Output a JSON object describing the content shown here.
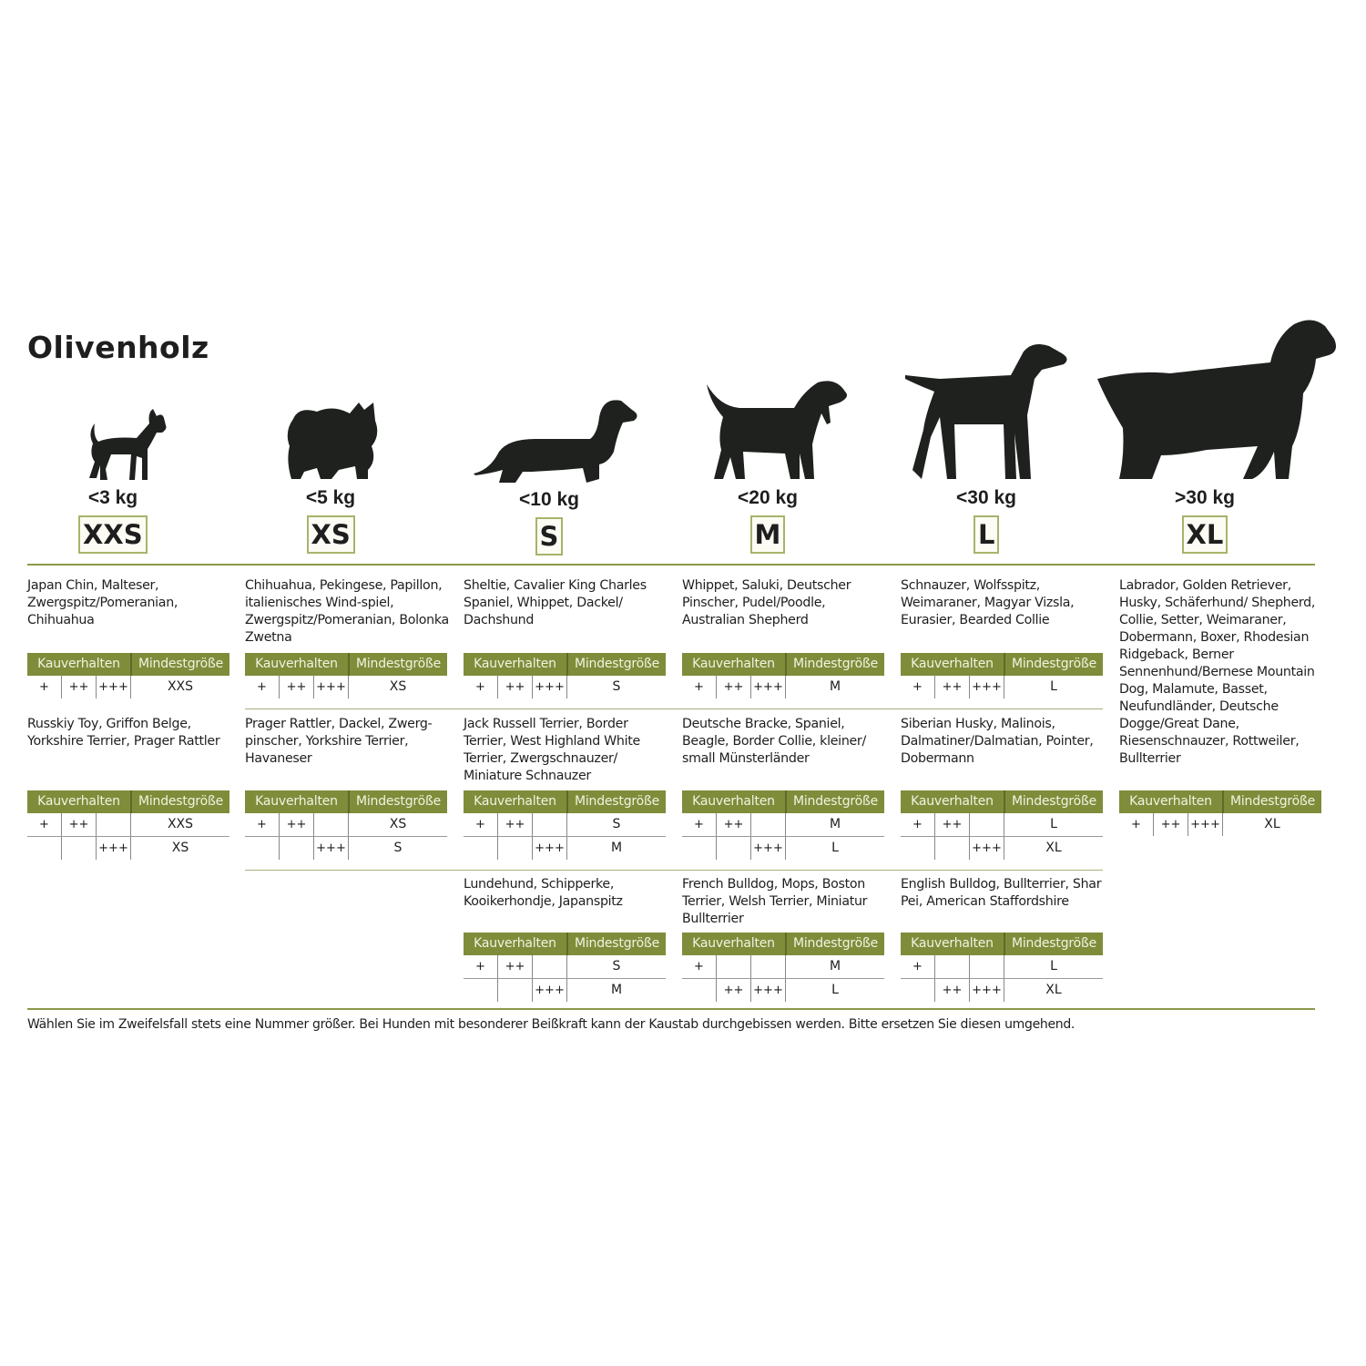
{
  "title": "Olivenholz",
  "accent_color": "#7f8c3a",
  "table_headers": {
    "chewing": "Kauverhalten",
    "min_size": "Mindestgröße"
  },
  "columns": [
    {
      "weight": "<3 kg",
      "size": "XXS",
      "icon": "chihuahua-silhouette-icon",
      "blocks": [
        {
          "text": "Japan Chin, Malteser, Zwergspitz/Pomeranian, Chihuahua",
          "rows": [
            [
              "+",
              "++",
              "+++",
              "XXS"
            ]
          ]
        },
        {
          "text": "Russkiy Toy, Griffon Belge, Yorkshire Terrier, Prager Rattler",
          "rows": [
            [
              "+",
              "++",
              "",
              "XXS"
            ],
            [
              "",
              "",
              "+++",
              "XS"
            ]
          ]
        }
      ]
    },
    {
      "weight": "<5 kg",
      "size": "XS",
      "icon": "pomeranian-silhouette-icon",
      "blocks": [
        {
          "text": "Chihuahua, Pekingese, Papillon, italienisches Wind-spiel, Zwergspitz/Pomeranian, Bolonka Zwetna",
          "rows": [
            [
              "+",
              "++",
              "+++",
              "XS"
            ]
          ]
        },
        {
          "text": "Prager Rattler, Dackel, Zwerg-pinscher, Yorkshire Terrier, Havaneser",
          "rows": [
            [
              "+",
              "++",
              "",
              "XS"
            ],
            [
              "",
              "",
              "+++",
              "S"
            ]
          ]
        }
      ]
    },
    {
      "weight": "<10 kg",
      "size": "S",
      "icon": "dachshund-silhouette-icon",
      "blocks": [
        {
          "text": "Sheltie, Cavalier King Charles Spaniel, Whippet, Dackel/ Dachshund",
          "rows": [
            [
              "+",
              "++",
              "+++",
              "S"
            ]
          ]
        },
        {
          "text": "Jack Russell Terrier, Border Terrier, West Highland White Terrier, Zwergschnauzer/ Miniature Schnauzer",
          "rows": [
            [
              "+",
              "++",
              "",
              "S"
            ],
            [
              "",
              "",
              "+++",
              "M"
            ]
          ]
        },
        {
          "text": "Lundehund, Schipperke, Kooikerhondje, Japanspitz",
          "rows": [
            [
              "+",
              "++",
              "",
              "S"
            ],
            [
              "",
              "",
              "+++",
              "M"
            ]
          ]
        }
      ]
    },
    {
      "weight": "<20 kg",
      "size": "M",
      "icon": "beagle-silhouette-icon",
      "blocks": [
        {
          "text": "Whippet, Saluki, Deutscher Pinscher, Pudel/Poodle, Australian Shepherd",
          "rows": [
            [
              "+",
              "++",
              "+++",
              "M"
            ]
          ]
        },
        {
          "text": "Deutsche Bracke,  Spaniel, Beagle, Border Collie, kleiner/ small Münsterländer",
          "rows": [
            [
              "+",
              "++",
              "",
              "M"
            ],
            [
              "",
              "",
              "+++",
              "L"
            ]
          ]
        },
        {
          "text": "French Bulldog, Mops, Boston Terrier, Welsh Terrier, Miniatur Bullterrier",
          "rows": [
            [
              "+",
              "",
              "",
              "M"
            ],
            [
              "",
              "++",
              "+++",
              "L"
            ]
          ]
        }
      ]
    },
    {
      "weight": "<30 kg",
      "size": "L",
      "icon": "pointer-silhouette-icon",
      "blocks": [
        {
          "text": "Schnauzer, Wolfsspitz, Weimaraner, Magyar Vizsla, Eurasier, Bearded Collie",
          "rows": [
            [
              "+",
              "++",
              "+++",
              "L"
            ]
          ]
        },
        {
          "text": "Siberian Husky, Malinois, Dalmatiner/Dalmatian, Pointer, Dobermann",
          "rows": [
            [
              "+",
              "++",
              "",
              "L"
            ],
            [
              "",
              "",
              "+++",
              "XL"
            ]
          ]
        },
        {
          "text": "English Bulldog, Bullterrier, Shar Pei, American Staffordshire",
          "rows": [
            [
              "+",
              "",
              "",
              "L"
            ],
            [
              "",
              "++",
              "+++",
              "XL"
            ]
          ]
        }
      ]
    },
    {
      "weight": ">30 kg",
      "size": "XL",
      "icon": "setter-silhouette-icon",
      "blocks": [
        {
          "text": "Labrador, Golden Retriever, Husky, Schäferhund/ Shepherd, Collie, Setter, Weimaraner, Dobermann, Boxer, Rhodesian Ridgeback, Berner Sennenhund/Bernese Mountain Dog, Malamute, Basset, Neufundländer, Deutsche Dogge/Great Dane, Riesenschnauzer, Rottweiler, Bullterrier",
          "rows": [
            [
              "+",
              "++",
              "+++",
              "XL"
            ]
          ]
        }
      ]
    }
  ],
  "footnote": "Wählen Sie im Zweifelsfall stets eine Nummer größer. Bei Hunden mit besonderer Beißkraft kann der Kaustab durchgebissen werden. Bitte ersetzen Sie diesen umgehend."
}
